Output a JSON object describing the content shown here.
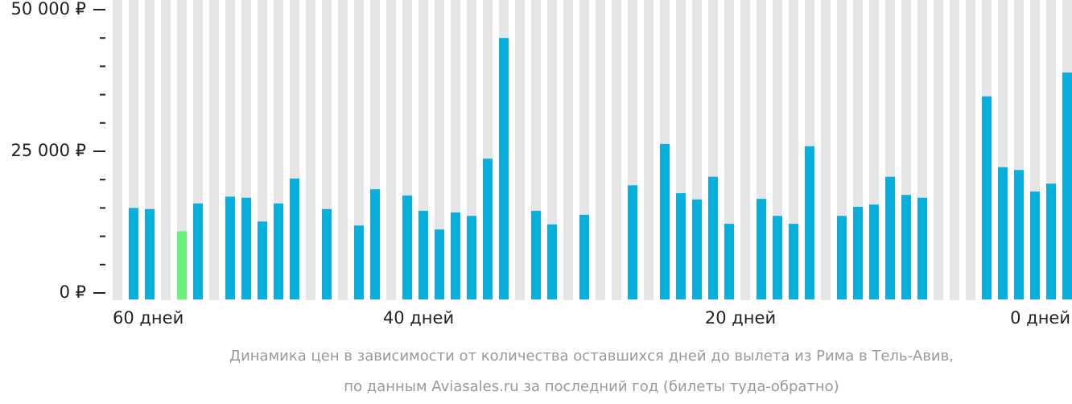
{
  "chart_data": {
    "type": "bar",
    "caption": [
      "Динамика цен в зависимости от количества оставшихся дней до вылета из Рима в Тель-Авив,",
      "по данным Aviasales.ru за последний год (билеты туда-обратно)"
    ],
    "x_labels": [
      "60 дней",
      "40 дней",
      "20 дней",
      "0 дней"
    ],
    "values": [
      null,
      15000,
      14800,
      null,
      10900,
      15800,
      null,
      17000,
      16800,
      12600,
      15800,
      20200,
      null,
      14800,
      null,
      11900,
      18300,
      null,
      17200,
      14500,
      11200,
      14200,
      13600,
      23700,
      45000,
      null,
      14500,
      12100,
      null,
      13800,
      null,
      null,
      19000,
      null,
      26300,
      17600,
      16500,
      20500,
      12200,
      null,
      16600,
      13600,
      12200,
      25900,
      null,
      13600,
      15200,
      15600,
      20500,
      17300,
      16800,
      null,
      null,
      null,
      34700,
      22200,
      21700,
      17900,
      19300,
      38900
    ],
    "color": "#0aafdc",
    "min_color": "#6ef07e",
    "column_color": "#e6e6e6",
    "ylim": [
      0,
      50000
    ],
    "yticks": [
      {
        "value": 0,
        "label": "0 ₽"
      },
      {
        "value": 25000,
        "label": "25 000 ₽"
      },
      {
        "value": 50000,
        "label": "50 000 ₽"
      }
    ],
    "minor_yticks": [
      5000,
      10000,
      15000,
      20000,
      30000,
      35000,
      40000,
      45000
    ]
  }
}
